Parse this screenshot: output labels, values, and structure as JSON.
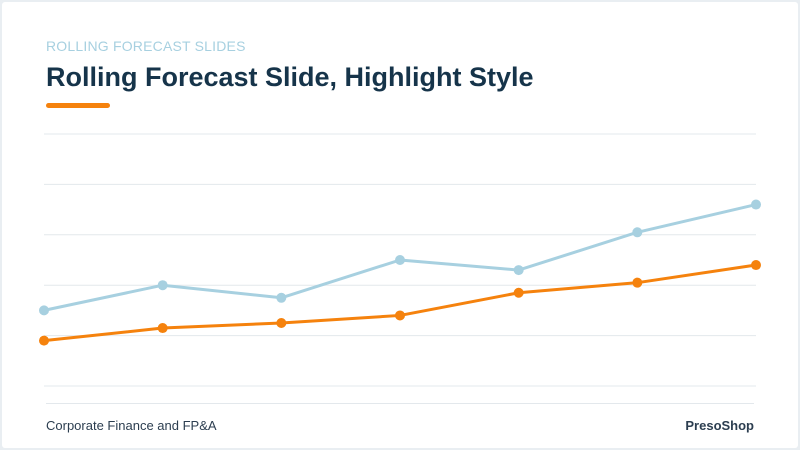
{
  "header": {
    "kicker": "Rolling Forecast Slides",
    "title": "Rolling Forecast Slide, Highlight Style"
  },
  "footer": {
    "left": "Corporate Finance and FP&A",
    "right": "PresoShop"
  },
  "colors": {
    "background": "#ffffff",
    "title": "#16344a",
    "kicker": "#a7d0e0",
    "accent": "#f5820d",
    "grid": "#e3e8ec"
  },
  "chart_data": {
    "type": "line",
    "x": [
      1,
      2,
      3,
      4,
      5,
      6,
      7
    ],
    "ylim": [
      0,
      10
    ],
    "yticks": [
      0,
      2,
      4,
      6,
      8,
      10
    ],
    "grid": true,
    "legend": "none",
    "series": [
      {
        "color": "#a7d0e0",
        "values": [
          3.0,
          4.0,
          3.5,
          5.0,
          4.6,
          6.1,
          7.2
        ]
      },
      {
        "color": "#f5820d",
        "values": [
          1.8,
          2.3,
          2.5,
          2.8,
          3.7,
          4.1,
          4.8
        ]
      }
    ]
  }
}
